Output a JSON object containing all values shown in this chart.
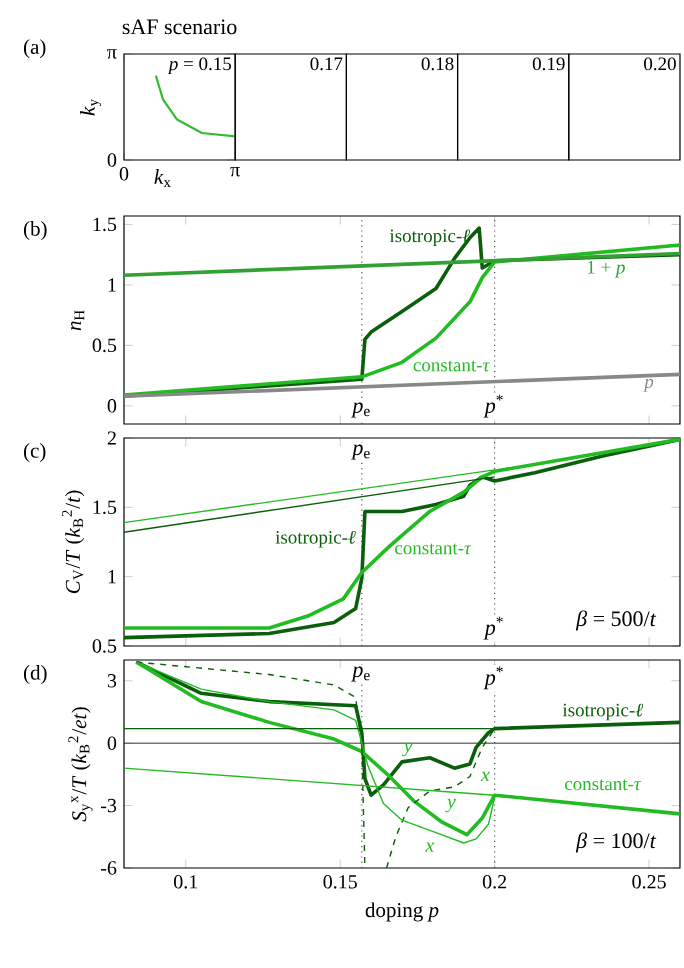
{
  "chart_data": [
    {
      "type": "line",
      "xlabel": "*k*$_{x}$",
      "ylabel": "*k*$_{y}$",
      "xlim": [
        0,
        3.1416
      ],
      "xticks": [
        {
          "value": 0,
          "label": "0"
        },
        {
          "value": 3.1416,
          "label": "π"
        }
      ],
      "ylim": [
        0,
        3.1416
      ],
      "yticks": [
        {
          "value": 0,
          "label": "0"
        },
        {
          "value": 3.1416,
          "label": "π"
        }
      ],
      "series": [
        {
          "color": "#33bb33",
          "x": [
            0.9,
            1.1,
            1.5,
            2.2,
            3.14
          ],
          "values": [
            2.5,
            1.8,
            1.2,
            0.8,
            0.7
          ]
        }
      ],
      "title": "sAF scenario",
      "annotations": [
        "(a)",
        "*p* = 0.15",
        "0.17",
        "0.18",
        "0.19",
        "0.20"
      ]
    },
    {
      "type": "line",
      "ylabel": "*n*$_{H}$",
      "xlim": [
        0.08,
        0.26
      ],
      "xticks": [
        0.1,
        0.15,
        0.2,
        0.25
      ],
      "ylim": [
        -0.15,
        1.57
      ],
      "yticks": [
        0,
        0.5,
        1,
        1.5
      ],
      "tick_labels": "y",
      "series": [
        {
          "name": "isotropic-*ℓ*",
          "color": "#0b5e0b",
          "x": [
            0.08,
            0.157,
            0.158,
            0.16,
            0.17,
            0.181,
            0.187,
            0.192,
            0.195,
            0.196,
            0.2,
            0.26
          ],
          "values": [
            0.08,
            0.22,
            0.55,
            0.61,
            0.78,
            0.97,
            1.22,
            1.39,
            1.47,
            1.14,
            1.2,
            1.25
          ]
        },
        {
          "name": "constant-*τ*",
          "color": "#22bb22",
          "x": [
            0.08,
            0.157,
            0.17,
            0.181,
            0.192,
            0.196,
            0.2,
            0.26
          ],
          "values": [
            0.09,
            0.24,
            0.36,
            0.56,
            0.86,
            1.06,
            1.19,
            1.33
          ]
        },
        {
          "name": "1 + *p*",
          "color": "#33a033",
          "x": [
            0.08,
            0.26
          ],
          "values": [
            1.08,
            1.26
          ]
        },
        {
          "name": "*p*",
          "color": "#888888",
          "x": [
            0.08,
            0.26
          ],
          "values": [
            0.08,
            0.26
          ]
        }
      ],
      "ref_lines": [
        {
          "axis": "x",
          "value": 0.157,
          "label": "*p*$_{e}$",
          "color": "#555555",
          "line_style": "dotted"
        },
        {
          "axis": "x",
          "value": 0.2,
          "label": "*p*$^{*}$",
          "color": "#555555",
          "line_style": "dotted"
        }
      ],
      "annotations": [
        "(b)"
      ]
    },
    {
      "type": "line",
      "ylabel": "*C*$_{V}$/*T* (*k*$_{B}$$^{2}$/*t*)",
      "xlim": [
        0.08,
        0.26
      ],
      "xticks": [
        0.1,
        0.15,
        0.2,
        0.25
      ],
      "ylim": [
        0.5,
        2
      ],
      "yticks": [
        0.5,
        1,
        1.5,
        2
      ],
      "tick_labels": "y",
      "series": [
        {
          "name": "isotropic-*ℓ*",
          "color": "#0b5e0b",
          "x": [
            0.08,
            0.127,
            0.148,
            0.155,
            0.157,
            0.158,
            0.17,
            0.181,
            0.19,
            0.192,
            0.196,
            0.2,
            0.213,
            0.235,
            0.26
          ],
          "values": [
            0.56,
            0.59,
            0.67,
            0.77,
            0.99,
            1.47,
            1.47,
            1.52,
            1.58,
            1.66,
            1.72,
            1.69,
            1.75,
            1.87,
            1.99
          ]
        },
        {
          "name": "constant-*τ*",
          "color": "#22bb22",
          "x": [
            0.08,
            0.127,
            0.14,
            0.151,
            0.157,
            0.166,
            0.179,
            0.19,
            0.196,
            0.2,
            0.26
          ],
          "values": [
            0.63,
            0.63,
            0.72,
            0.84,
            1.03,
            1.22,
            1.47,
            1.61,
            1.72,
            1.76,
            1.99
          ]
        },
        {
          "color": "#22bb22",
          "x": [
            0.08,
            0.2
          ],
          "values": [
            1.39,
            1.77
          ]
        },
        {
          "color": "#0b5e0b",
          "x": [
            0.08,
            0.2
          ],
          "values": [
            1.32,
            1.72
          ]
        }
      ],
      "ref_lines": [
        {
          "axis": "x",
          "value": 0.157,
          "label": "*p*$_{e}$",
          "color": "#555555",
          "line_style": "dotted"
        },
        {
          "axis": "x",
          "value": 0.2,
          "label": "*p*$^{*}$",
          "color": "#555555",
          "line_style": "dotted"
        }
      ],
      "annotations": [
        "(c)",
        "*β* = 500/*t*"
      ]
    },
    {
      "type": "line",
      "xlabel": "doping *p*",
      "ylabel": "*S*$_{y}$$^{x}$/*T* (*k*$_{B}$$^{2}$/*et*)",
      "xlim": [
        0.08,
        0.26
      ],
      "xticks": [
        0.1,
        0.15,
        0.2,
        0.25
      ],
      "ylim": [
        -6,
        4
      ],
      "yticks": [
        -6,
        -3,
        0,
        3
      ],
      "series": [
        {
          "name": "isotropic-*ℓ*",
          "color": "#0b5e0b",
          "x": [
            0.084,
            0.105,
            0.127,
            0.155,
            0.157,
            0.158,
            0.16,
            0.164,
            0.17,
            0.179,
            0.187,
            0.192,
            0.194,
            0.198,
            0.2,
            0.26
          ],
          "values": [
            3.9,
            2.4,
            2.0,
            1.8,
            0.5,
            -1.7,
            -2.5,
            -2.0,
            -0.9,
            -0.7,
            -1.2,
            -1.0,
            -0.2,
            0.5,
            0.7,
            1.0
          ]
        },
        {
          "name": "constant-*τ*",
          "color": "#22bb22",
          "x": [
            0.084,
            0.105,
            0.127,
            0.148,
            0.157,
            0.166,
            0.174,
            0.183,
            0.191,
            0.196,
            0.2,
            0.26
          ],
          "values": [
            3.9,
            2.0,
            1.0,
            0.2,
            -0.4,
            -1.6,
            -2.8,
            -3.8,
            -4.4,
            -3.6,
            -2.5,
            -3.4
          ]
        },
        {
          "color": "#0b5e0b",
          "line_style": "dashed",
          "x": [
            0.084,
            0.127,
            0.148,
            0.155,
            0.157,
            0.158,
            0.159,
            0.165,
            0.168,
            0.172,
            0.179,
            0.187,
            0.192,
            0.196,
            0.2
          ],
          "values": [
            3.9,
            3.3,
            2.8,
            2.2,
            -0.2,
            -6,
            null,
            -6,
            -4.5,
            -3.1,
            -2.3,
            -2.1,
            -1.6,
            -0.2,
            0.7
          ]
        },
        {
          "color": "#22bb22",
          "x": [
            0.084,
            0.105,
            0.127,
            0.148,
            0.155,
            0.159,
            0.164,
            0.17,
            0.181,
            0.19,
            0.194,
            0.198,
            0.2
          ],
          "values": [
            3.9,
            2.6,
            2.0,
            1.6,
            1.1,
            -1.1,
            -2.9,
            -3.7,
            -4.3,
            -4.8,
            -4.6,
            -3.9,
            -2.6
          ]
        },
        {
          "color": "#22bb22",
          "x": [
            0.08,
            0.2
          ],
          "values": [
            -1.2,
            -2.5
          ]
        },
        {
          "color": "#0b5e0b",
          "x": [
            0.08,
            0.2
          ],
          "values": [
            0.7,
            0.7
          ]
        }
      ],
      "ref_lines": [
        {
          "axis": "x",
          "value": 0.157,
          "label": "*p*$_{e}$",
          "color": "#555555",
          "line_style": "dotted"
        },
        {
          "axis": "x",
          "value": 0.2,
          "label": "*p*$^{*}$",
          "color": "#555555",
          "line_style": "dotted"
        },
        {
          "axis": "y",
          "value": 0,
          "color": "#333333",
          "line_style": "solid"
        }
      ],
      "annotations": [
        "(d)",
        "*β* = 100/*t*",
        {
          "text": "*y*",
          "x": 0.172,
          "y": -0.3
        },
        {
          "text": "*x*",
          "x": 0.197,
          "y": -1.6
        },
        "*y*",
        "*x*"
      ]
    }
  ]
}
